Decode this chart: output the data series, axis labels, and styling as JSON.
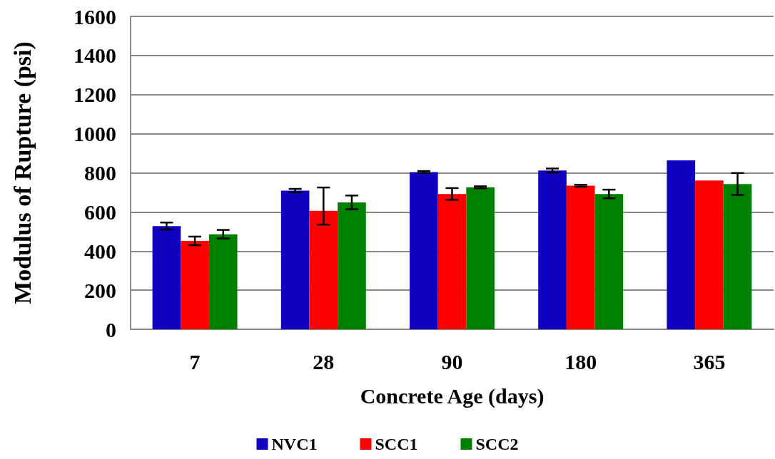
{
  "chart_data": {
    "type": "bar",
    "xlabel": "Concrete Age (days)",
    "ylabel": "Modulus of Rupture (psi)",
    "categories": [
      "7",
      "28",
      "90",
      "180",
      "365"
    ],
    "series": [
      {
        "name": "NVC1",
        "color": "#1000c0",
        "values": [
          528,
          709,
          804,
          812,
          864
        ],
        "errors": [
          18,
          9,
          5,
          10,
          null
        ]
      },
      {
        "name": "SCC1",
        "color": "#ff0000",
        "values": [
          452,
          606,
          692,
          734,
          761
        ],
        "errors": [
          22,
          [
            535,
            725
          ],
          30,
          5,
          null
        ]
      },
      {
        "name": "SCC2",
        "color": "#008000",
        "values": [
          486,
          649,
          726,
          692,
          743
        ],
        "errors": [
          22,
          35,
          5,
          22,
          56
        ]
      }
    ],
    "ylim": [
      0,
      1600
    ],
    "yticks": [
      0,
      200,
      400,
      600,
      800,
      1000,
      1200,
      1400,
      1600
    ],
    "grid": "y",
    "legend": "bottom"
  }
}
